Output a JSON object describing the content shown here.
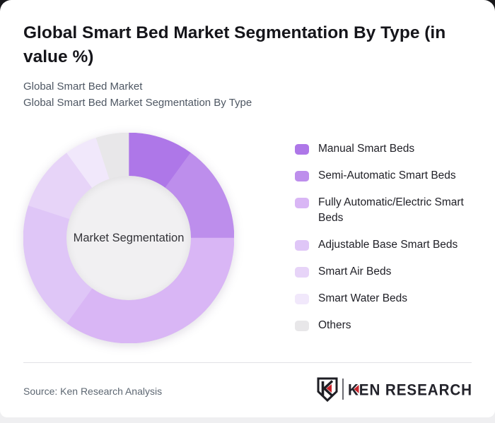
{
  "header": {
    "title": "Global Smart Bed Market Segmentation By Type (in value %)",
    "subtitle_line1": "Global Smart Bed Market",
    "subtitle_line2": "Global Smart Bed Market Segmentation By Type"
  },
  "footer": {
    "source": "Source: Ken Research Analysis",
    "brand": "KEN RESEARCH"
  },
  "colors": {
    "card_bg": "#ffffff",
    "page_bg_top": "#18181b",
    "page_bg_bottom": "#efeff1",
    "divider": "#e2e2e6",
    "donut_hole": "#f1f0f2",
    "brand_red": "#c8232b",
    "brand_dark": "#23232b"
  },
  "chart_data": {
    "type": "pie",
    "donut": true,
    "title": "Global Smart Bed Market Segmentation By Type (in value %)",
    "center_label": "Market Segmentation",
    "unit": "% of market value",
    "start_angle_deg": 0,
    "direction": "clockwise",
    "legend_position": "right",
    "data_labels": "none",
    "segments": [
      {
        "label": "Manual Smart Beds",
        "value": 10,
        "color": "#ae77e8"
      },
      {
        "label": "Semi-Automatic Smart Beds",
        "value": 15,
        "color": "#bd8eec"
      },
      {
        "label": "Fully Automatic/Electric Smart Beds",
        "value": 35,
        "color": "#d9b6f5"
      },
      {
        "label": "Adjustable Base Smart Beds",
        "value": 20,
        "color": "#dfc6f7"
      },
      {
        "label": "Smart Air Beds",
        "value": 10,
        "color": "#e7d4f8"
      },
      {
        "label": "Smart Water Beds",
        "value": 5,
        "color": "#f1e8fb"
      },
      {
        "label": "Others",
        "value": 5,
        "color": "#e8e7e9"
      }
    ]
  }
}
